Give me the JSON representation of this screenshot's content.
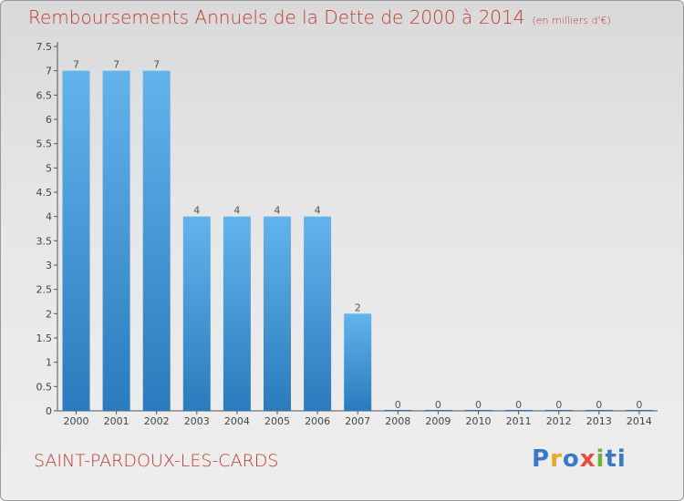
{
  "title": "Remboursements Annuels de la Dette de 2000 à 2014",
  "title_unit": "(en milliers d'€)",
  "commune": "SAINT-PARDOUX-LES-CARDS",
  "logo_letters": [
    "P",
    "r",
    "o",
    "x",
    "i",
    "ti"
  ],
  "colors": {
    "title": "#c0392b",
    "bar_top": "#5dade2",
    "bar_bottom": "#2e7fc1"
  },
  "chart_data": {
    "type": "bar",
    "categories": [
      "2000",
      "2001",
      "2002",
      "2003",
      "2004",
      "2005",
      "2006",
      "2007",
      "2008",
      "2009",
      "2010",
      "2011",
      "2012",
      "2013",
      "2014"
    ],
    "values": [
      7,
      7,
      7,
      4,
      4,
      4,
      4,
      2,
      0,
      0,
      0,
      0,
      0,
      0,
      0
    ],
    "data_labels": [
      "7",
      "7",
      "7",
      "4",
      "4",
      "4",
      "4",
      "2",
      "0",
      "0",
      "0",
      "0",
      "0",
      "0",
      "0"
    ],
    "yticks": [
      "0",
      "0.5",
      "1",
      "1.5",
      "2",
      "2.5",
      "3",
      "3.5",
      "4",
      "4.5",
      "5",
      "5.5",
      "6",
      "6.5",
      "7",
      "7.5"
    ],
    "ylim": [
      0,
      7.5
    ],
    "grid": false,
    "title": "Remboursements Annuels de la Dette de 2000 à 2014",
    "xlabel": "",
    "ylabel": ""
  }
}
